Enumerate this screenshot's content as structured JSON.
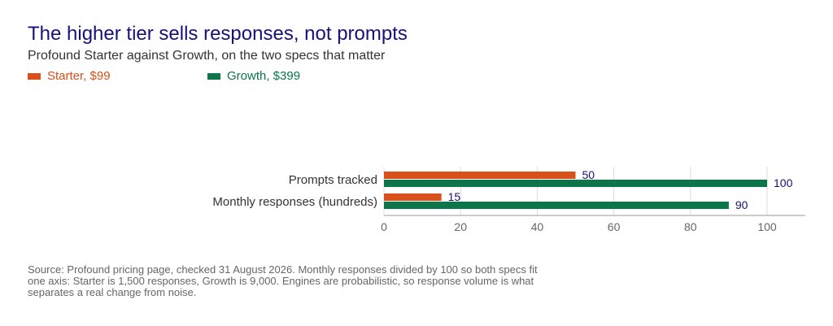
{
  "title": "The higher tier sells responses, not prompts",
  "subtitle": "Profound Starter against Growth, on the two specs that matter",
  "source": "Source: Profound pricing page, checked 31 August 2026. Monthly responses divided by 100 so both specs fit one axis: Starter is 1,500 responses, Growth is 9,000. Engines are probabilistic, so response volume is what separates a real change from noise.",
  "colors": {
    "starter": "#d9501a",
    "growth": "#0c7549",
    "value_text": "#15127a"
  },
  "chart_data": {
    "type": "bar",
    "orientation": "horizontal",
    "categories": [
      "Prompts tracked",
      "Monthly responses (hundreds)"
    ],
    "series": [
      {
        "name": "Starter, $99",
        "values": [
          50,
          15
        ]
      },
      {
        "name": "Growth, $399",
        "values": [
          100,
          90
        ]
      }
    ],
    "xlim": [
      0,
      100
    ],
    "xticks": [
      "0",
      "20",
      "40",
      "60",
      "80",
      "100"
    ],
    "grid": true,
    "legend": "top-left"
  }
}
